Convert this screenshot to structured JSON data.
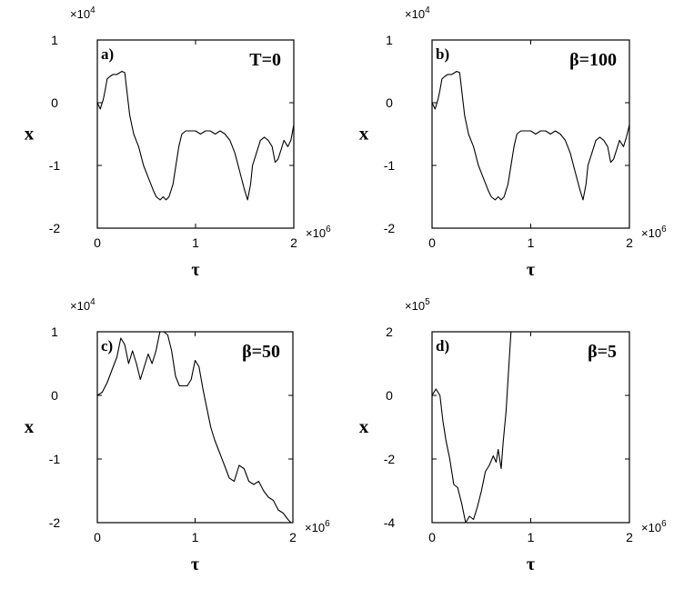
{
  "chart_data": [
    {
      "type": "line",
      "panel_label": "a)",
      "annotation": "T=0",
      "xlabel": "τ",
      "ylabel": "x",
      "x_scale_label": "×10",
      "x_scale_exp": "6",
      "y_scale_label": "×10",
      "y_scale_exp": "4",
      "xlim": [
        0,
        2
      ],
      "ylim": [
        -2,
        1
      ],
      "x_ticks": [
        "0",
        "1",
        "2"
      ],
      "y_ticks": [
        "1",
        "0",
        "-1",
        "-2"
      ],
      "x_tick_values": [
        0,
        1,
        2
      ],
      "y_tick_values": [
        1,
        0,
        -1,
        -2
      ],
      "grid": false,
      "series": [
        {
          "x": [
            0,
            0.03,
            0.06,
            0.08,
            0.1,
            0.13,
            0.16,
            0.2,
            0.25,
            0.28,
            0.3,
            0.33,
            0.37,
            0.42,
            0.47,
            0.52,
            0.57,
            0.6,
            0.64,
            0.67,
            0.7,
            0.73,
            0.77,
            0.8,
            0.83,
            0.86,
            0.9,
            0.95,
            1.0,
            1.05,
            1.1,
            1.15,
            1.2,
            1.25,
            1.3,
            1.35,
            1.4,
            1.45,
            1.5,
            1.53,
            1.56,
            1.58,
            1.62,
            1.66,
            1.7,
            1.74,
            1.78,
            1.81,
            1.84,
            1.87,
            1.9,
            1.94,
            1.97,
            2.0
          ],
          "y": [
            0,
            -0.1,
            0.05,
            0.2,
            0.38,
            0.42,
            0.45,
            0.45,
            0.5,
            0.48,
            0.2,
            -0.2,
            -0.5,
            -0.7,
            -1.0,
            -1.2,
            -1.4,
            -1.5,
            -1.55,
            -1.5,
            -1.55,
            -1.5,
            -1.3,
            -1.0,
            -0.7,
            -0.5,
            -0.45,
            -0.45,
            -0.45,
            -0.5,
            -0.45,
            -0.45,
            -0.5,
            -0.45,
            -0.5,
            -0.6,
            -0.8,
            -1.1,
            -1.4,
            -1.55,
            -1.3,
            -1.0,
            -0.8,
            -0.6,
            -0.55,
            -0.6,
            -0.7,
            -0.95,
            -0.9,
            -0.75,
            -0.6,
            -0.7,
            -0.6,
            -0.35
          ]
        }
      ]
    },
    {
      "type": "line",
      "panel_label": "b)",
      "annotation": "β=100",
      "xlabel": "τ",
      "ylabel": "x",
      "x_scale_label": "×10",
      "x_scale_exp": "6",
      "y_scale_label": "×10",
      "y_scale_exp": "4",
      "xlim": [
        0,
        2
      ],
      "ylim": [
        -2,
        1
      ],
      "x_ticks": [
        "0",
        "1",
        "2"
      ],
      "y_ticks": [
        "1",
        "0",
        "-1",
        "-2"
      ],
      "x_tick_values": [
        0,
        1,
        2
      ],
      "y_tick_values": [
        1,
        0,
        -1,
        -2
      ],
      "grid": false,
      "series": [
        {
          "x": [
            0,
            0.03,
            0.06,
            0.08,
            0.1,
            0.13,
            0.16,
            0.2,
            0.25,
            0.28,
            0.3,
            0.33,
            0.37,
            0.42,
            0.47,
            0.52,
            0.57,
            0.6,
            0.64,
            0.67,
            0.7,
            0.73,
            0.77,
            0.8,
            0.83,
            0.86,
            0.9,
            0.95,
            1.0,
            1.05,
            1.1,
            1.15,
            1.2,
            1.25,
            1.3,
            1.35,
            1.4,
            1.45,
            1.5,
            1.53,
            1.56,
            1.58,
            1.62,
            1.66,
            1.7,
            1.74,
            1.78,
            1.81,
            1.84,
            1.87,
            1.9,
            1.94,
            1.97,
            2.0
          ],
          "y": [
            0,
            -0.1,
            0.05,
            0.2,
            0.38,
            0.42,
            0.45,
            0.45,
            0.5,
            0.48,
            0.2,
            -0.2,
            -0.5,
            -0.7,
            -1.0,
            -1.2,
            -1.4,
            -1.5,
            -1.55,
            -1.5,
            -1.55,
            -1.5,
            -1.3,
            -1.0,
            -0.7,
            -0.5,
            -0.45,
            -0.45,
            -0.45,
            -0.5,
            -0.45,
            -0.45,
            -0.5,
            -0.45,
            -0.5,
            -0.6,
            -0.8,
            -1.1,
            -1.4,
            -1.55,
            -1.3,
            -1.0,
            -0.8,
            -0.6,
            -0.55,
            -0.6,
            -0.7,
            -0.95,
            -0.9,
            -0.75,
            -0.6,
            -0.7,
            -0.55,
            -0.35
          ]
        }
      ]
    },
    {
      "type": "line",
      "panel_label": "c)",
      "annotation": "β=50",
      "xlabel": "τ",
      "ylabel": "x",
      "x_scale_label": "×10",
      "x_scale_exp": "6",
      "y_scale_label": "×10",
      "y_scale_exp": "4",
      "xlim": [
        0,
        2
      ],
      "ylim": [
        -2,
        1
      ],
      "x_ticks": [
        "0",
        "1",
        "2"
      ],
      "y_ticks": [
        "1",
        "0",
        "-1",
        "-2"
      ],
      "x_tick_values": [
        0,
        1,
        2
      ],
      "y_tick_values": [
        1,
        0,
        -1,
        -2
      ],
      "grid": false,
      "series": [
        {
          "x": [
            0,
            0.05,
            0.1,
            0.15,
            0.2,
            0.24,
            0.28,
            0.32,
            0.36,
            0.4,
            0.44,
            0.48,
            0.52,
            0.56,
            0.6,
            0.64,
            0.68,
            0.72,
            0.76,
            0.8,
            0.84,
            0.88,
            0.92,
            0.96,
            1.0,
            1.04,
            1.08,
            1.12,
            1.16,
            1.2,
            1.25,
            1.3,
            1.35,
            1.4,
            1.45,
            1.5,
            1.55,
            1.6,
            1.65,
            1.7,
            1.75,
            1.8,
            1.85,
            1.9,
            1.95,
            1.98
          ],
          "y": [
            0,
            0.05,
            0.2,
            0.4,
            0.6,
            0.9,
            0.8,
            0.5,
            0.7,
            0.5,
            0.25,
            0.45,
            0.65,
            0.5,
            0.7,
            1.0,
            1.0,
            0.95,
            0.7,
            0.3,
            0.15,
            0.15,
            0.15,
            0.25,
            0.55,
            0.45,
            0.1,
            -0.2,
            -0.5,
            -0.7,
            -0.9,
            -1.1,
            -1.3,
            -1.35,
            -1.1,
            -1.15,
            -1.35,
            -1.4,
            -1.35,
            -1.5,
            -1.6,
            -1.65,
            -1.8,
            -1.85,
            -1.95,
            -2.0
          ]
        }
      ]
    },
    {
      "type": "line",
      "panel_label": "d)",
      "annotation": "β=5",
      "xlabel": "τ",
      "ylabel": "x",
      "x_scale_label": "×10",
      "x_scale_exp": "6",
      "y_scale_label": "×10",
      "y_scale_exp": "5",
      "xlim": [
        0,
        2
      ],
      "ylim": [
        -4,
        2
      ],
      "x_ticks": [
        "0",
        "1",
        "2"
      ],
      "y_ticks": [
        "2",
        "0",
        "-2",
        "-4"
      ],
      "x_tick_values": [
        0,
        1,
        2
      ],
      "y_tick_values": [
        2,
        0,
        -2,
        -4
      ],
      "grid": false,
      "series": [
        {
          "x": [
            0,
            0.04,
            0.08,
            0.11,
            0.14,
            0.18,
            0.22,
            0.26,
            0.3,
            0.34,
            0.38,
            0.42,
            0.46,
            0.5,
            0.54,
            0.58,
            0.62,
            0.65,
            0.67,
            0.7,
            0.72,
            0.75,
            0.78,
            0.8
          ],
          "y": [
            0,
            0.2,
            0.0,
            -0.8,
            -1.4,
            -2.0,
            -2.8,
            -2.9,
            -3.4,
            -4.0,
            -3.8,
            -3.9,
            -3.5,
            -3.0,
            -2.4,
            -2.2,
            -1.9,
            -2.1,
            -1.7,
            -2.3,
            -1.5,
            -0.5,
            1.0,
            2.0
          ]
        }
      ]
    }
  ]
}
